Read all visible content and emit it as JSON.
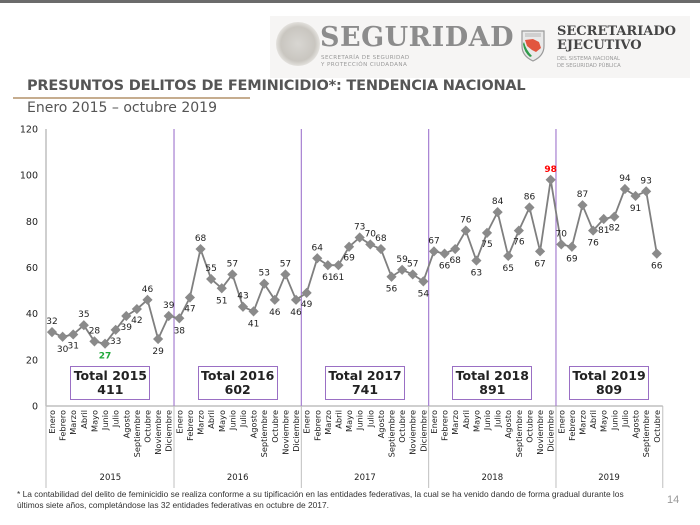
{
  "header": {
    "seguridad_title": "SEGURIDAD",
    "seguridad_sub_1": "SECRETARÍA DE SEGURIDAD",
    "seguridad_sub_2": "Y PROTECCIÓN CIUDADANA",
    "secretariado_title_1": "SECRETARIADO",
    "secretariado_title_2": "EJECUTIVO",
    "secretariado_sub_1": "DEL SISTEMA NACIONAL",
    "secretariado_sub_2": "DE SEGURIDAD PÚBLICA"
  },
  "page": {
    "title": "PRESUNTOS DELITOS DE FEMINICIDIO*: TENDENCIA NACIONAL",
    "subtitle": "Enero 2015 – octubre 2019",
    "footnote": "* La contabilidad del delito de feminicidio se realiza conforme a su tipificación en las entidades federativas, la cual se ha venido dando de forma gradual durante los últimos siete años, completándose las 32 entidades federativas en octubre de 2017.",
    "page_number": "14"
  },
  "colors": {
    "line": "#7f7f7f",
    "marker": "#8a8a8a",
    "divider": "#a67fd1",
    "max_label": "#ff0000",
    "min_label": "#1fa83a",
    "axis": "#bfbfbf"
  },
  "chart_data": {
    "type": "line",
    "title": "PRESUNTOS DELITOS DE FEMINICIDIO*: TENDENCIA NACIONAL",
    "subtitle": "Enero 2015 – octubre 2019",
    "xlabel": "",
    "ylabel": "",
    "ylim": [
      0,
      120
    ],
    "yticks": [
      0,
      20,
      40,
      60,
      80,
      100,
      120
    ],
    "grid": false,
    "legend": "none",
    "months": [
      "Enero",
      "Febrero",
      "Marzo",
      "Abril",
      "Mayo",
      "Junio",
      "Julio",
      "Agosto",
      "Septiembre",
      "Octubre",
      "Noviembre",
      "Diciembre"
    ],
    "years": [
      {
        "year": "2015",
        "values": [
          32,
          30,
          31,
          35,
          28,
          27,
          33,
          39,
          42,
          46,
          29,
          39
        ],
        "total_label": "Total 2015",
        "total": "411"
      },
      {
        "year": "2016",
        "values": [
          38,
          47,
          68,
          55,
          51,
          57,
          43,
          41,
          53,
          46,
          57,
          46
        ],
        "total_label": "Total 2016",
        "total": "602"
      },
      {
        "year": "2017",
        "values": [
          49,
          64,
          61,
          61,
          69,
          73,
          70,
          68,
          56,
          59,
          57,
          54
        ],
        "total_label": "Total 2017",
        "total": "741"
      },
      {
        "year": "2018",
        "values": [
          67,
          66,
          68,
          76,
          63,
          75,
          84,
          65,
          76,
          86,
          67,
          98
        ],
        "total_label": "Total 2018",
        "total": "891"
      },
      {
        "year": "2019",
        "values": [
          70,
          69,
          87,
          76,
          81,
          82,
          94,
          91,
          93,
          66
        ],
        "total_label": "Total 2019",
        "total": "809"
      }
    ],
    "highlight": {
      "max": {
        "year": "2018",
        "month": "Diciembre",
        "value": 98
      },
      "min": {
        "year": "2015",
        "month": "Junio",
        "value": 27
      }
    }
  }
}
